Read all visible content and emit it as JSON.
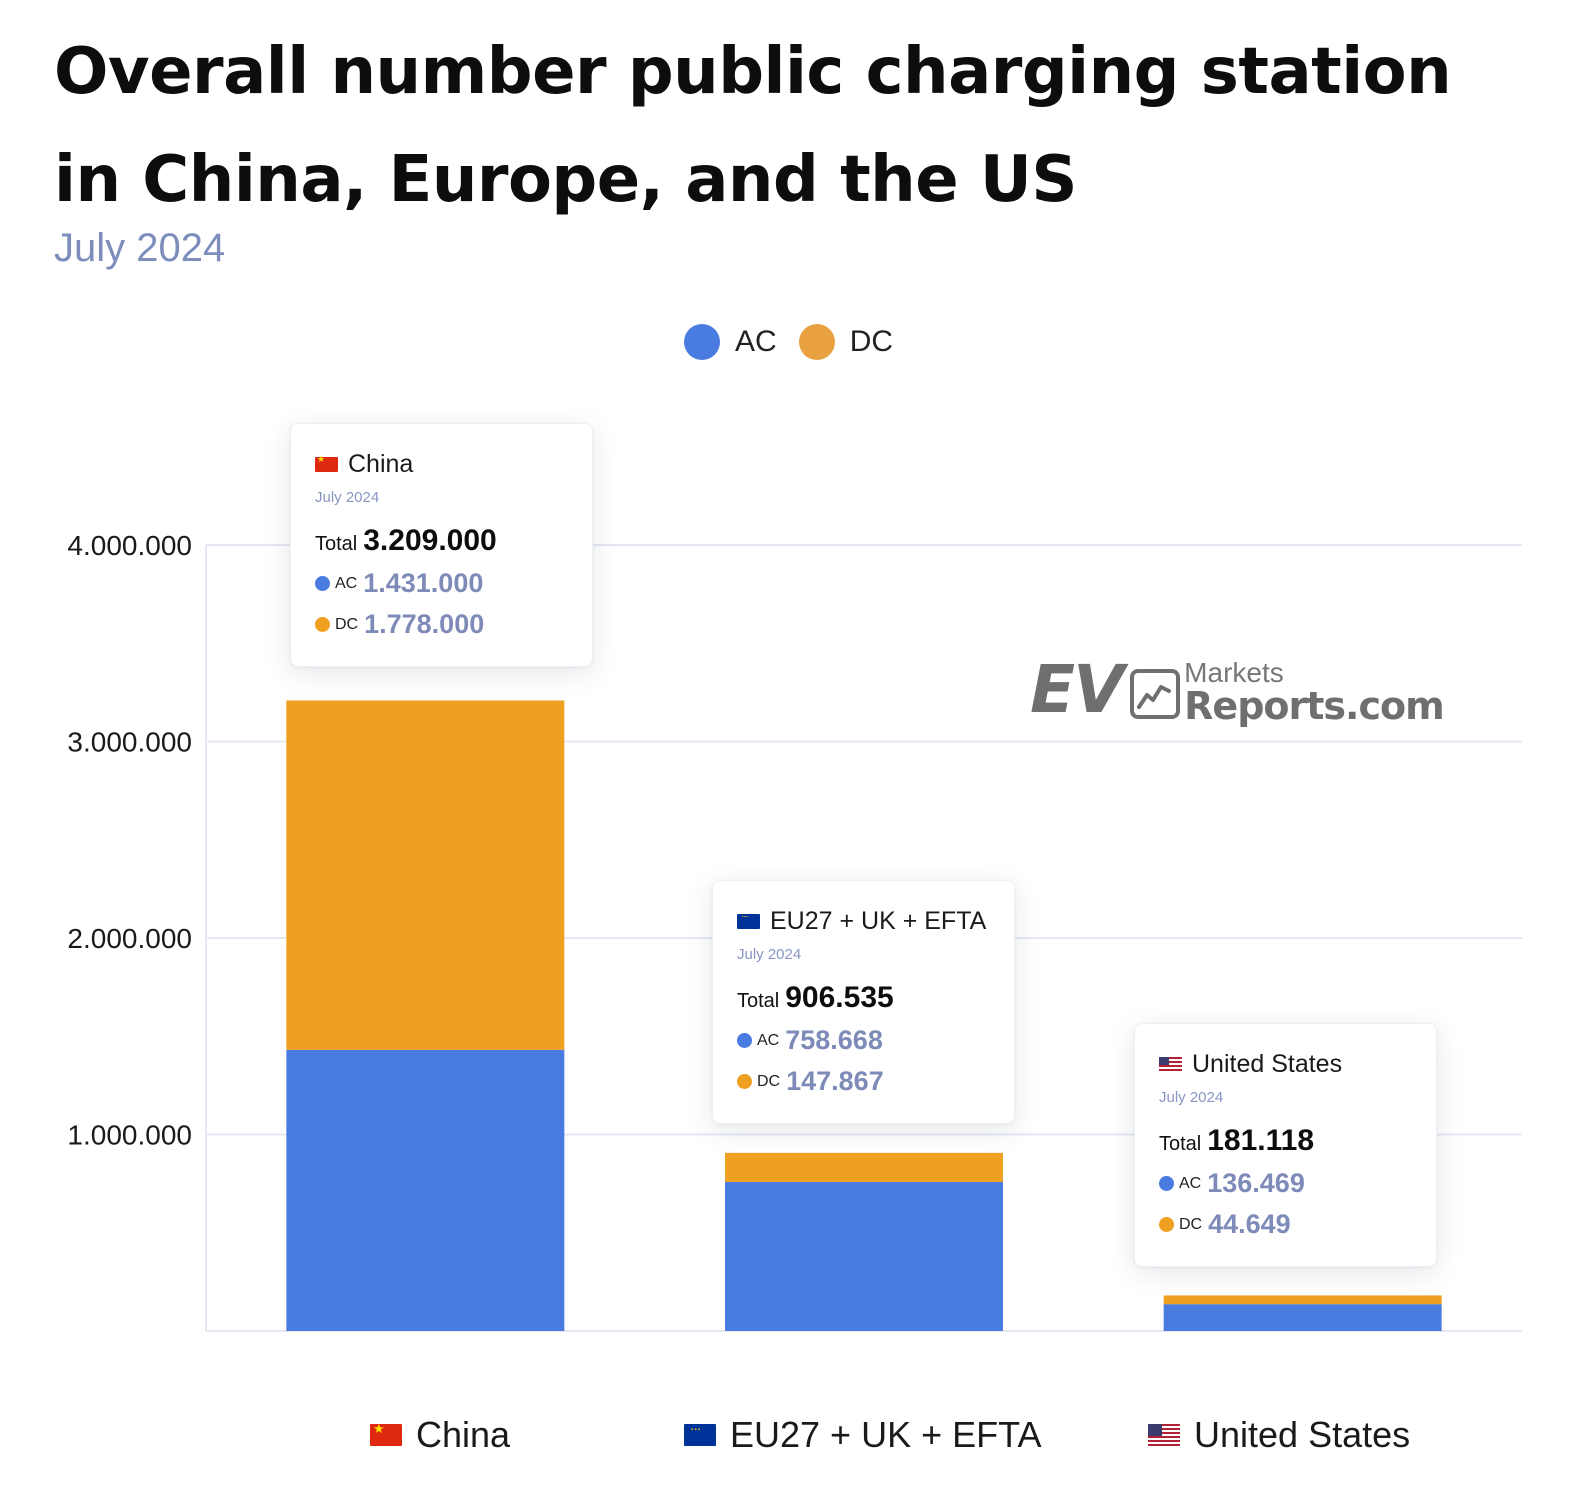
{
  "title": "Overall number public charging station in China, Europe, and the US",
  "subtitle": "July 2024",
  "legend": [
    {
      "name": "AC",
      "color": "#4a7be0"
    },
    {
      "name": "DC",
      "color": "#f0a020"
    }
  ],
  "watermark": {
    "ev": "EV",
    "markets": "Markets",
    "reports": "Reports.com",
    "icon": "chart-line-icon"
  },
  "chart_data": {
    "type": "bar",
    "stacked": true,
    "categories": [
      "China",
      "EU27 + UK + EFTA",
      "United States"
    ],
    "category_flags": [
      "flag-china-icon",
      "flag-eu-icon",
      "flag-us-icon"
    ],
    "series": [
      {
        "name": "AC",
        "color": "#4a7be0",
        "values": [
          1431000,
          758668,
          136469
        ]
      },
      {
        "name": "DC",
        "color": "#f0a020",
        "values": [
          1778000,
          147867,
          44649
        ]
      }
    ],
    "yticks": [
      {
        "value": 1000000,
        "label": "1.000.000"
      },
      {
        "value": 2000000,
        "label": "2.000.000"
      },
      {
        "value": 3000000,
        "label": "3.000.000"
      },
      {
        "value": 4000000,
        "label": "4.000.000"
      }
    ],
    "ylim": [
      0,
      4000000
    ],
    "grid": true,
    "legend_position": "top-center",
    "xlabel": "",
    "ylabel": ""
  },
  "tooltips": [
    {
      "country": "China",
      "date": "July 2024",
      "total_label": "Total",
      "total": "3.209.000",
      "ac_label": "AC",
      "ac": "1.431.000",
      "dc_label": "DC",
      "dc": "1.778.000"
    },
    {
      "country": "EU27 + UK + EFTA",
      "date": "July 2024",
      "total_label": "Total",
      "total": "906.535",
      "ac_label": "AC",
      "ac": "758.668",
      "dc_label": "DC",
      "dc": "147.867"
    },
    {
      "country": "United States",
      "date": "July 2024",
      "total_label": "Total",
      "total": "181.118",
      "ac_label": "AC",
      "ac": "136.469",
      "dc_label": "DC",
      "dc": "44.649"
    }
  ]
}
